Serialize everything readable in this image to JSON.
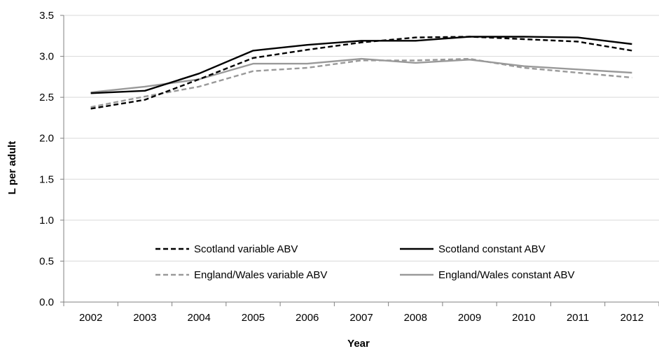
{
  "chart_data": {
    "type": "line",
    "title": "",
    "xlabel": "Year",
    "ylabel": "L per adult",
    "categories": [
      "2002",
      "2003",
      "2004",
      "2005",
      "2006",
      "2007",
      "2008",
      "2009",
      "2010",
      "2011",
      "2012"
    ],
    "ylim": [
      0,
      3.5
    ],
    "yticks": [
      "0.0",
      "0.5",
      "1.0",
      "1.5",
      "2.0",
      "2.5",
      "3.0",
      "3.5"
    ],
    "grid": "horizontal",
    "legend_position": "bottom-center-inside",
    "series": [
      {
        "name": "Scotland variable ABV",
        "color": "#000000",
        "dash": "dashed",
        "values": [
          2.36,
          2.47,
          2.72,
          2.98,
          3.08,
          3.17,
          3.23,
          3.24,
          3.21,
          3.18,
          3.07
        ]
      },
      {
        "name": "Scotland constant ABV",
        "color": "#000000",
        "dash": "solid",
        "values": [
          2.55,
          2.58,
          2.79,
          3.07,
          3.14,
          3.19,
          3.19,
          3.24,
          3.24,
          3.23,
          3.15
        ]
      },
      {
        "name": "England/Wales variable ABV",
        "color": "#999999",
        "dash": "dashed",
        "values": [
          2.38,
          2.51,
          2.63,
          2.82,
          2.86,
          2.95,
          2.95,
          2.97,
          2.86,
          2.8,
          2.74
        ]
      },
      {
        "name": "England/Wales constant ABV",
        "color": "#999999",
        "dash": "solid",
        "values": [
          2.56,
          2.63,
          2.72,
          2.91,
          2.91,
          2.97,
          2.92,
          2.96,
          2.88,
          2.84,
          2.8
        ]
      }
    ]
  }
}
